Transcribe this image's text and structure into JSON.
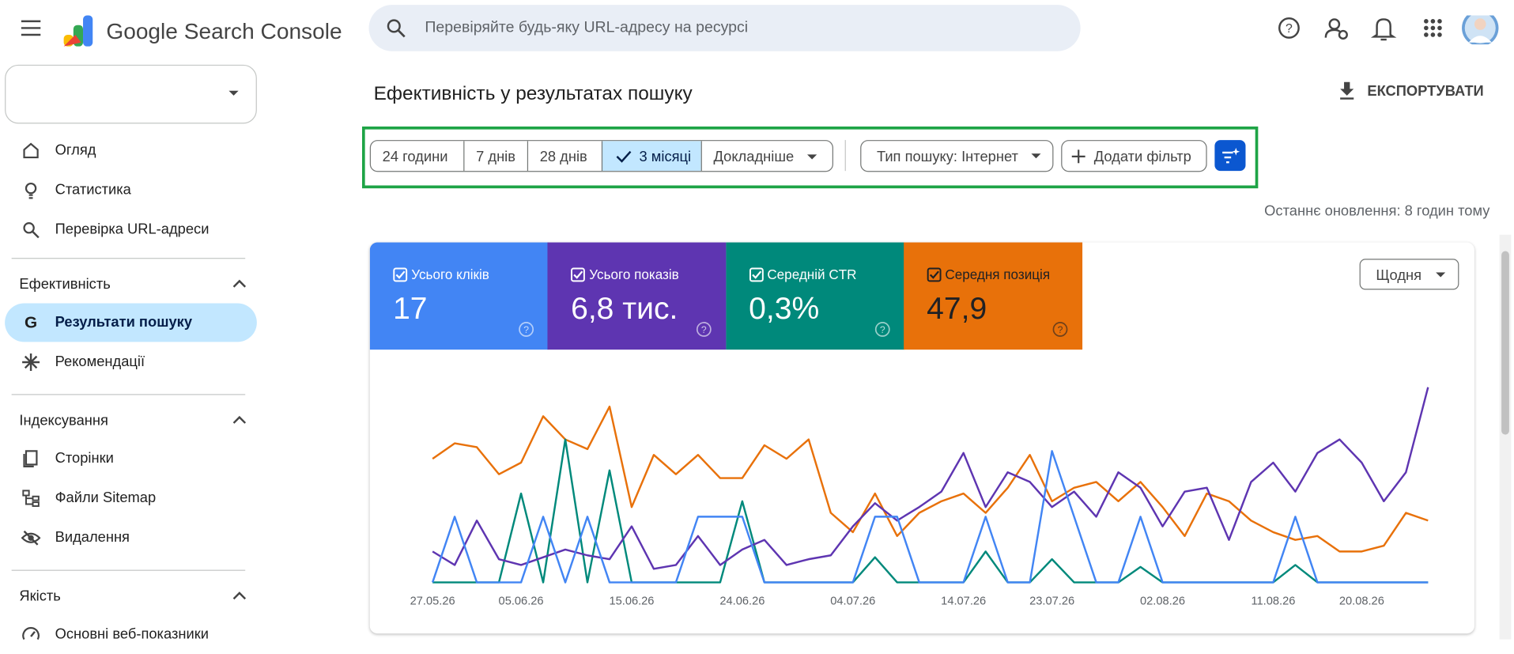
{
  "header": {
    "product": "Google Search Console",
    "search_placeholder": "Перевіряйте будь-яку URL-адресу на ресурсі"
  },
  "sidebar": {
    "items": [
      "Огляд",
      "Статистика",
      "Перевірка URL-адреси"
    ],
    "sections": [
      {
        "title": "Ефективність",
        "items": [
          "Результати пошуку",
          "Рекомендації"
        ]
      },
      {
        "title": "Індексування",
        "items": [
          "Сторінки",
          "Файли Sitemap",
          "Видалення"
        ]
      },
      {
        "title": "Якість",
        "items": [
          "Основні веб-показники"
        ]
      }
    ]
  },
  "page": {
    "title": "Ефективність у результатах пошуку",
    "export": "ЕКСПОРТУВАТИ",
    "last_update": "Останнє оновлення: 8 годин тому"
  },
  "filters": {
    "ranges": [
      "24 години",
      "7 днів",
      "28 днів",
      "3 місяці",
      "Докладніше"
    ],
    "search_type": "Тип пошуку: Інтернет",
    "add_filter": "Додати фільтр"
  },
  "metrics": [
    {
      "label": "Усього кліків",
      "value": "17",
      "color": "#4285f4",
      "text_color": "#ffffff"
    },
    {
      "label": "Усього показів",
      "value": "6,8 тис.",
      "color": "#5e35b1",
      "text_color": "#ffffff"
    },
    {
      "label": "Середній CTR",
      "value": "0,3%",
      "color": "#00897b",
      "text_color": "#ffffff"
    },
    {
      "label": "Середня позиція",
      "value": "47,9",
      "color": "#e8710a",
      "text_color": "#202124"
    }
  ],
  "granularity": "Щодня",
  "chart_data": {
    "type": "line",
    "categories": [
      "27.05.26",
      null,
      null,
      null,
      "05.06.26",
      null,
      null,
      null,
      null,
      "15.06.26",
      null,
      null,
      null,
      null,
      "24.06.26",
      null,
      null,
      null,
      null,
      "04.07.26",
      null,
      null,
      null,
      null,
      "14.07.26",
      null,
      null,
      null,
      "23.07.26",
      null,
      null,
      null,
      null,
      "02.08.26",
      null,
      null,
      null,
      null,
      "11.08.26",
      null,
      null,
      null,
      "20.08.26",
      null,
      null,
      null
    ],
    "ylim": [
      0,
      105
    ],
    "series": [
      {
        "color": "#4285f4",
        "values": [
          0,
          34,
          0,
          0,
          0,
          34,
          0,
          34,
          0,
          0,
          0,
          0,
          34,
          34,
          34,
          0,
          0,
          0,
          0,
          0,
          34,
          34,
          0,
          0,
          0,
          34,
          0,
          0,
          68,
          34,
          0,
          0,
          34,
          0,
          0,
          0,
          0,
          0,
          0,
          34,
          0,
          0,
          0,
          0,
          0,
          0
        ]
      },
      {
        "color": "#5e35b1",
        "values": [
          16,
          9,
          32,
          12,
          9,
          13,
          17,
          14,
          12,
          29,
          7,
          9,
          24,
          9,
          17,
          22,
          9,
          12,
          14,
          29,
          41,
          32,
          39,
          47,
          67,
          39,
          57,
          52,
          39,
          47,
          34,
          57,
          49,
          29,
          47,
          49,
          22,
          52,
          62,
          47,
          67,
          74,
          62,
          42,
          57,
          101
        ]
      },
      {
        "color": "#00897b",
        "values": [
          0,
          0,
          0,
          0,
          46,
          0,
          74,
          0,
          58,
          0,
          0,
          0,
          0,
          0,
          42,
          0,
          0,
          0,
          0,
          0,
          13,
          0,
          0,
          0,
          0,
          16,
          0,
          0,
          12,
          0,
          0,
          0,
          8,
          0,
          0,
          0,
          0,
          0,
          0,
          9,
          0,
          0,
          0,
          0,
          0,
          0
        ]
      },
      {
        "color": "#e8710a",
        "values": [
          64,
          72,
          70,
          56,
          62,
          86,
          74,
          69,
          91,
          39,
          66,
          56,
          66,
          54,
          54,
          71,
          64,
          74,
          36,
          26,
          46,
          24,
          36,
          42,
          46,
          36,
          49,
          66,
          42,
          49,
          52,
          42,
          52,
          39,
          24,
          46,
          42,
          32,
          26,
          22,
          24,
          16,
          16,
          19,
          36,
          32
        ]
      }
    ]
  }
}
